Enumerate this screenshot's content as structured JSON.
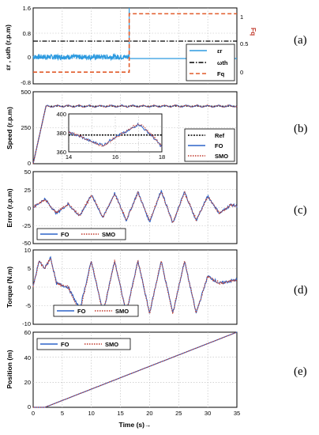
{
  "xlabel": "Time (s)→",
  "x_ticks": [
    "0",
    "5",
    "10",
    "15",
    "20",
    "25",
    "30",
    "35"
  ],
  "panels": [
    {
      "tag": "(a)",
      "ylabel": "εr , ωth (r.p.m)",
      "y2label": "Fq",
      "y_ticks": [
        "1.6",
        "0.8",
        "0",
        "-0.8"
      ],
      "y2_ticks": [
        "1",
        "0.5",
        "0"
      ],
      "legend": [
        "εr",
        "ωth",
        "Fq"
      ]
    },
    {
      "tag": "(b)",
      "ylabel": "Speed (r.p.m)",
      "y_ticks": [
        "500",
        "250",
        "0"
      ],
      "legend": [
        "Ref",
        "FO",
        "SMO"
      ],
      "inset": {
        "x_ticks": [
          "14",
          "16",
          "18"
        ],
        "y_ticks": [
          "400",
          "380",
          "360"
        ]
      }
    },
    {
      "tag": "(c)",
      "ylabel": "Error (r.p.m)",
      "y_ticks": [
        "50",
        "25",
        "0",
        "-25",
        "-50"
      ],
      "legend": [
        "FO",
        "SMO"
      ]
    },
    {
      "tag": "(d)",
      "ylabel": "Torque (N.m)",
      "y_ticks": [
        "10",
        "5",
        "0",
        "-5",
        "-10"
      ],
      "legend": [
        "FO",
        "SMO"
      ]
    },
    {
      "tag": "(e)",
      "ylabel": "Position (m)",
      "y_ticks": [
        "60",
        "40",
        "20",
        "0"
      ],
      "legend": [
        "FO",
        "SMO"
      ]
    }
  ],
  "chart_data": [
    {
      "type": "line",
      "panel": "a",
      "x": [
        0,
        16.5,
        16.5,
        35
      ],
      "series": [
        {
          "name": "εr",
          "values": [
            0.05,
            0.05,
            0,
            0
          ],
          "color": "#2e9be0"
        },
        {
          "name": "ωth",
          "values": [
            0.55,
            0.55,
            0.55,
            0.55
          ],
          "color": "#000000"
        },
        {
          "name": "Fq",
          "values": [
            0,
            0,
            1,
            1
          ],
          "axis": "right",
          "color": "#e15b2a"
        }
      ],
      "ylim": [
        -0.8,
        1.6
      ],
      "y2lim": [
        -0.2,
        1.1
      ],
      "xlim": [
        0,
        35
      ]
    },
    {
      "type": "line",
      "panel": "b",
      "x": [
        0,
        2.2,
        35
      ],
      "series": [
        {
          "name": "Ref",
          "values": [
            0,
            400,
            400
          ],
          "color": "#000000"
        },
        {
          "name": "FO",
          "values": [
            0,
            400,
            400
          ],
          "color": "#2d64c8"
        },
        {
          "name": "SMO",
          "values": [
            0,
            400,
            400
          ],
          "color": "#c0392b"
        }
      ],
      "ylim": [
        0,
        500
      ],
      "xlim": [
        0,
        35
      ],
      "inset": {
        "xlim": [
          14,
          18
        ],
        "ylim": [
          360,
          405
        ],
        "x": [
          14,
          14.5,
          15,
          15.5,
          16,
          16.5,
          17,
          17.5,
          18
        ],
        "Ref": [
          380,
          380,
          380,
          380,
          380,
          380,
          380,
          380,
          380
        ],
        "FO": [
          383,
          378,
          372,
          368,
          378,
          384,
          393,
          381,
          366
        ],
        "SMO": [
          383,
          379,
          371,
          367,
          377,
          385,
          394,
          382,
          367
        ]
      }
    },
    {
      "type": "line",
      "panel": "c",
      "x": [
        0,
        2,
        4,
        6,
        8,
        10,
        12,
        14,
        16,
        18,
        20,
        22,
        24,
        26,
        28,
        30,
        32,
        34,
        35
      ],
      "series": [
        {
          "name": "FO",
          "values": [
            0,
            12,
            -8,
            5,
            -12,
            18,
            -14,
            20,
            -18,
            22,
            -20,
            24,
            -22,
            22,
            -18,
            16,
            -8,
            4,
            2
          ],
          "color": "#2d64c8"
        },
        {
          "name": "SMO",
          "values": [
            0,
            11,
            -7,
            5,
            -11,
            17,
            -13,
            19,
            -17,
            21,
            -19,
            23,
            -21,
            21,
            -17,
            15,
            -8,
            4,
            2
          ],
          "color": "#c0392b"
        }
      ],
      "ylim": [
        -50,
        50
      ],
      "xlim": [
        0,
        35
      ]
    },
    {
      "type": "line",
      "panel": "d",
      "x": [
        0,
        1,
        2,
        3,
        4,
        6,
        8,
        10,
        12,
        14,
        16,
        18,
        20,
        22,
        24,
        26,
        28,
        30,
        32,
        35
      ],
      "series": [
        {
          "name": "FO",
          "values": [
            0,
            7,
            5,
            8,
            1,
            0,
            -6,
            7,
            -7,
            7,
            -7,
            7,
            -7,
            7,
            -7,
            7,
            -7,
            3,
            1,
            2
          ],
          "color": "#2d64c8"
        },
        {
          "name": "SMO",
          "values": [
            0,
            7,
            5,
            8,
            1,
            0,
            -7,
            7,
            -7,
            7,
            -7,
            7,
            -7,
            7,
            -7,
            7,
            -7,
            3,
            1,
            2
          ],
          "color": "#c0392b"
        }
      ],
      "ylim": [
        -10,
        10
      ],
      "xlim": [
        0,
        35
      ]
    },
    {
      "type": "line",
      "panel": "e",
      "x": [
        0,
        2,
        35
      ],
      "series": [
        {
          "name": "FO",
          "values": [
            0,
            0,
            60
          ],
          "color": "#2d64c8"
        },
        {
          "name": "SMO",
          "values": [
            0,
            0,
            60
          ],
          "color": "#c0392b"
        }
      ],
      "ylim": [
        0,
        60
      ],
      "xlim": [
        0,
        35
      ]
    }
  ]
}
